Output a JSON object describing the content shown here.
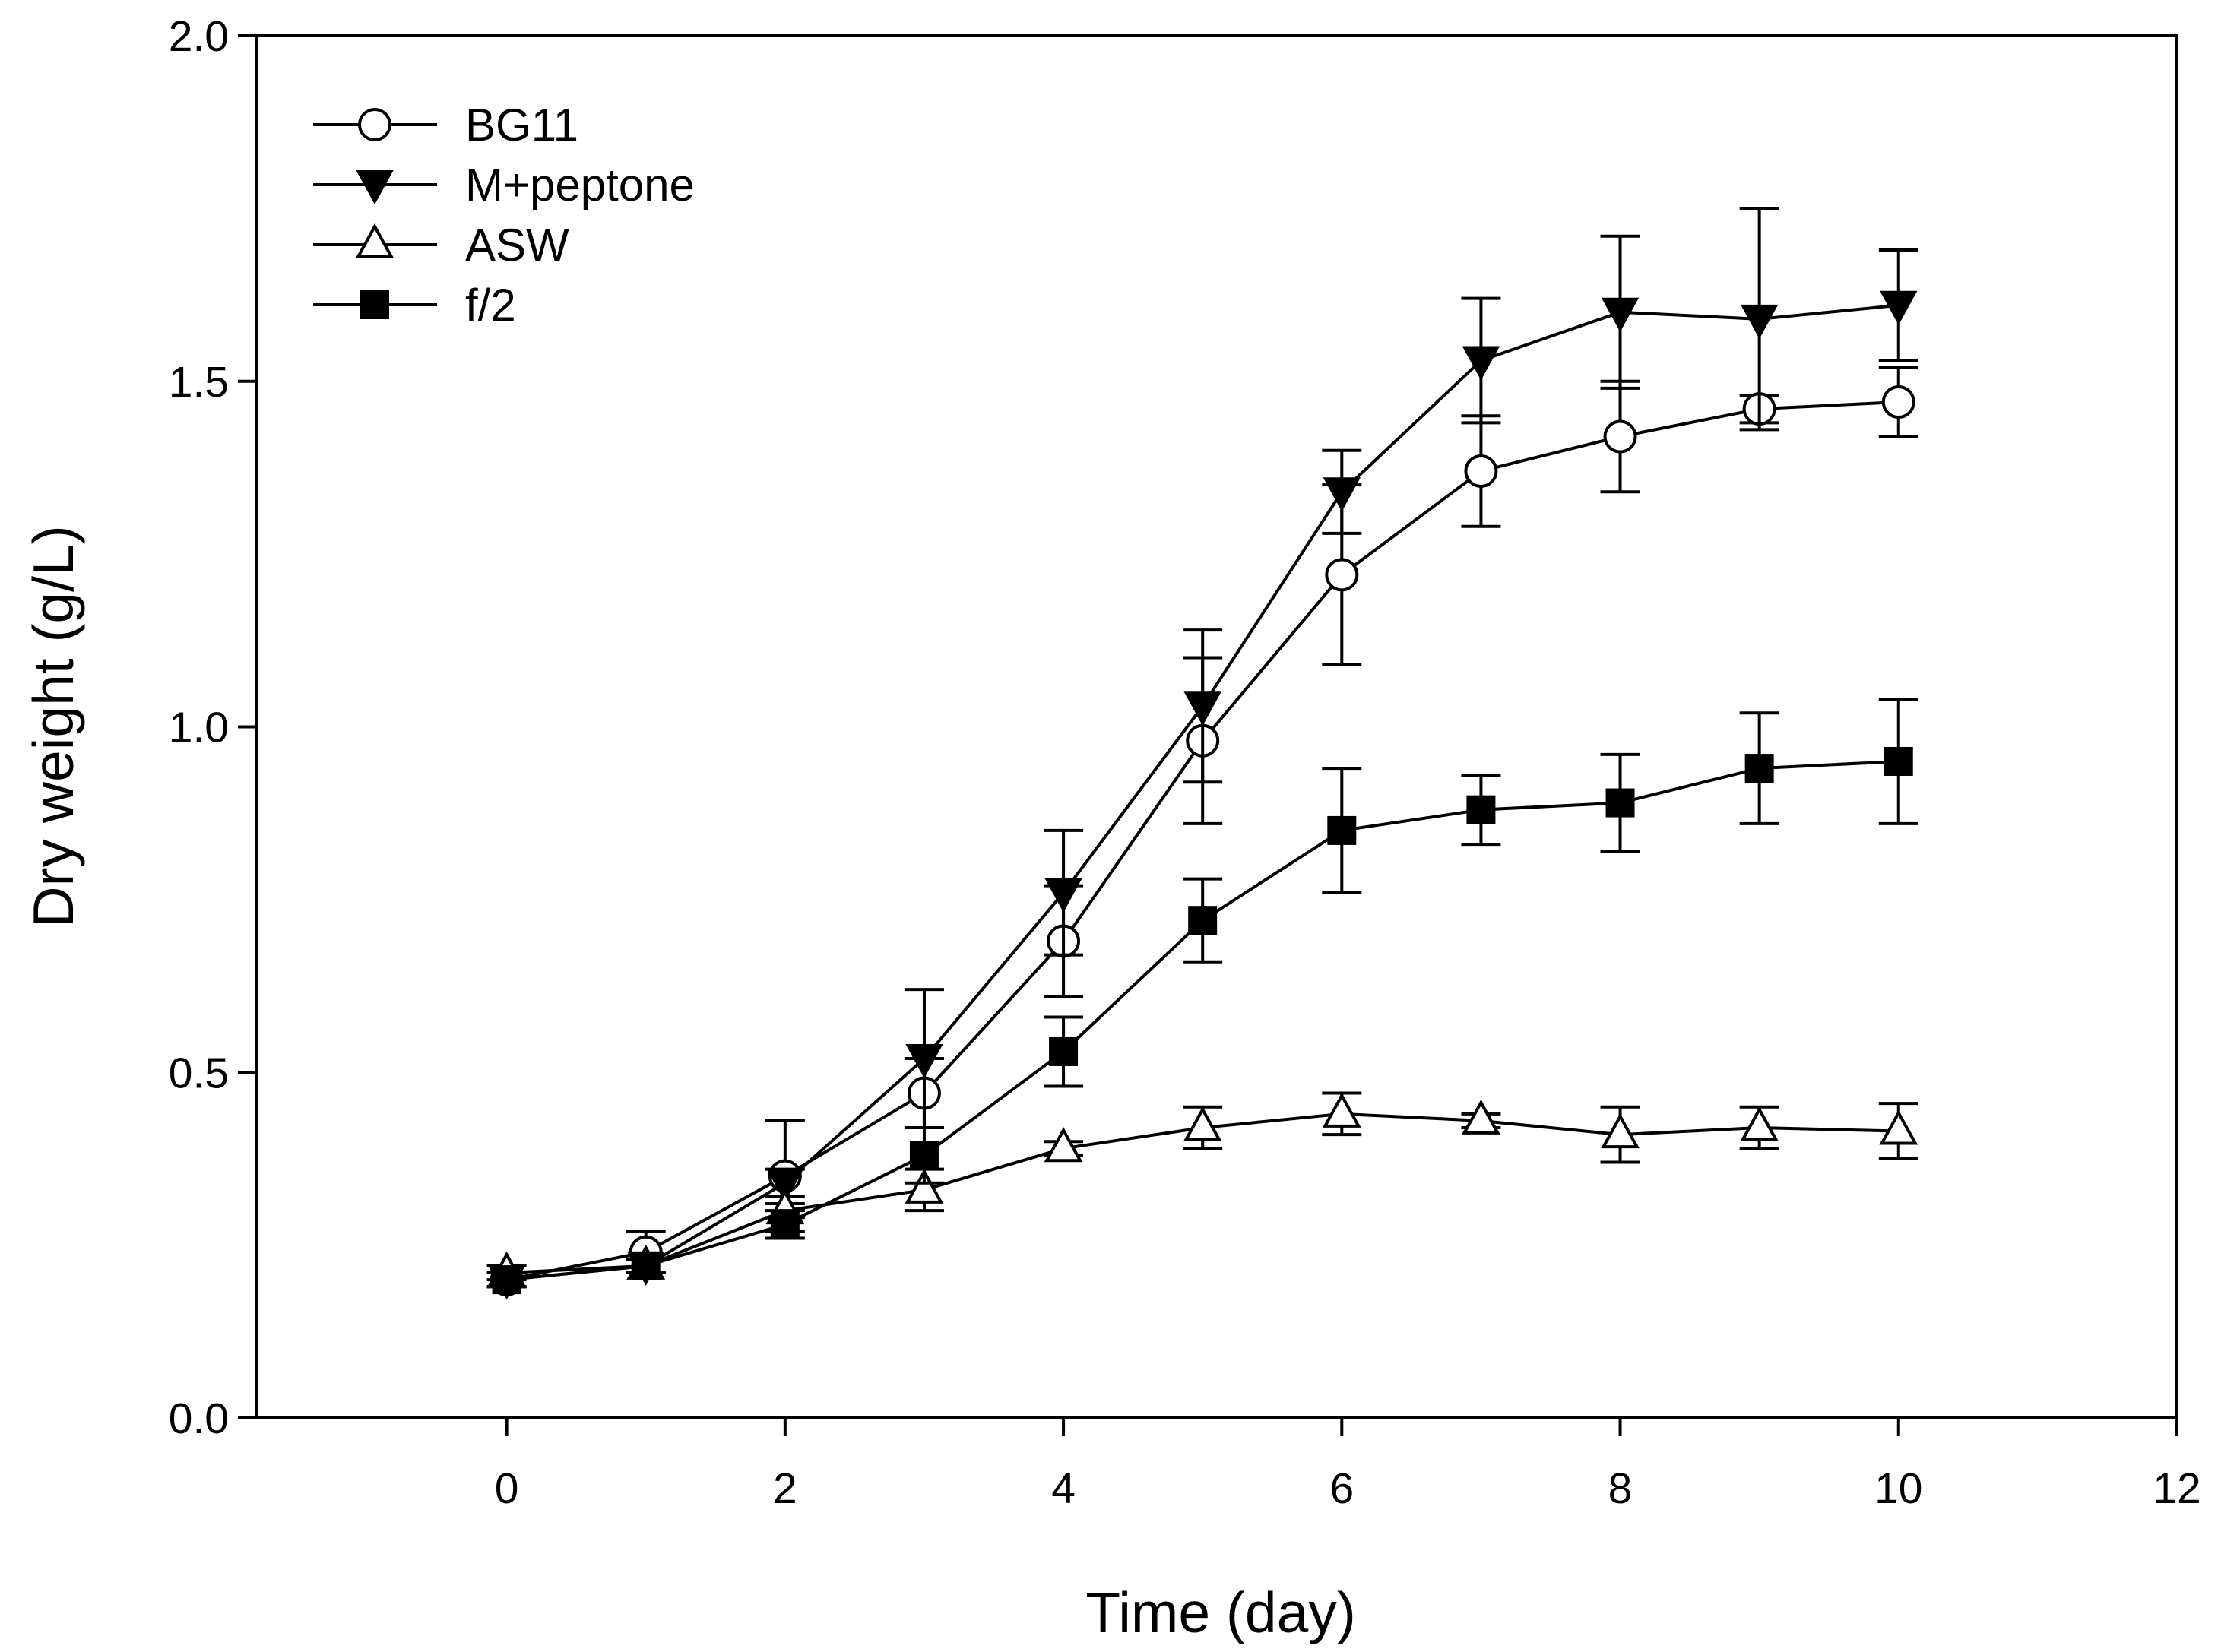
{
  "chart_data": {
    "type": "line",
    "title": "",
    "xlabel": "Time (day)",
    "ylabel": "Dry weight (g/L)",
    "xlim": [
      -1.8,
      12
    ],
    "ylim": [
      0,
      2.0
    ],
    "xticks": [
      0,
      2,
      4,
      6,
      8,
      10,
      12
    ],
    "yticks": [
      0.0,
      0.5,
      1.0,
      1.5,
      2.0
    ],
    "xtick_labels": [
      "0",
      "2",
      "4",
      "6",
      "8",
      "10",
      "12"
    ],
    "ytick_labels": [
      "0.0",
      "0.5",
      "1.0",
      "1.5",
      "2.0"
    ],
    "grid": false,
    "legend_position": "top-left",
    "x": [
      0,
      1,
      2,
      3,
      4,
      5,
      6,
      7,
      8,
      9,
      10
    ],
    "series": [
      {
        "name": "BG11",
        "marker": "open-circle",
        "values": [
          0.2,
          0.24,
          0.35,
          0.47,
          0.69,
          0.98,
          1.22,
          1.37,
          1.42,
          1.46,
          1.47
        ],
        "errors": [
          0.01,
          0.03,
          0.08,
          0.05,
          0.08,
          0.12,
          0.13,
          0.08,
          0.08,
          0.02,
          0.05
        ]
      },
      {
        "name": "M+peptone",
        "marker": "filled-down-triangle",
        "values": [
          0.2,
          0.22,
          0.34,
          0.52,
          0.76,
          1.03,
          1.34,
          1.53,
          1.6,
          1.59,
          1.61
        ],
        "errors": [
          0.01,
          0.01,
          0.02,
          0.1,
          0.09,
          0.11,
          0.06,
          0.09,
          0.11,
          0.16,
          0.08
        ]
      },
      {
        "name": "ASW",
        "marker": "open-up-triangle",
        "values": [
          0.21,
          0.22,
          0.3,
          0.33,
          0.39,
          0.42,
          0.44,
          0.43,
          0.41,
          0.42,
          0.415
        ],
        "errors": [
          0.01,
          0.01,
          0.01,
          0.03,
          0.01,
          0.03,
          0.03,
          0.01,
          0.04,
          0.03,
          0.04
        ]
      },
      {
        "name": "f/2",
        "marker": "filled-square",
        "values": [
          0.2,
          0.22,
          0.28,
          0.38,
          0.53,
          0.72,
          0.85,
          0.88,
          0.89,
          0.94,
          0.95
        ],
        "errors": [
          0.01,
          0.01,
          0.02,
          0.04,
          0.05,
          0.06,
          0.09,
          0.05,
          0.07,
          0.08,
          0.09
        ]
      }
    ]
  }
}
